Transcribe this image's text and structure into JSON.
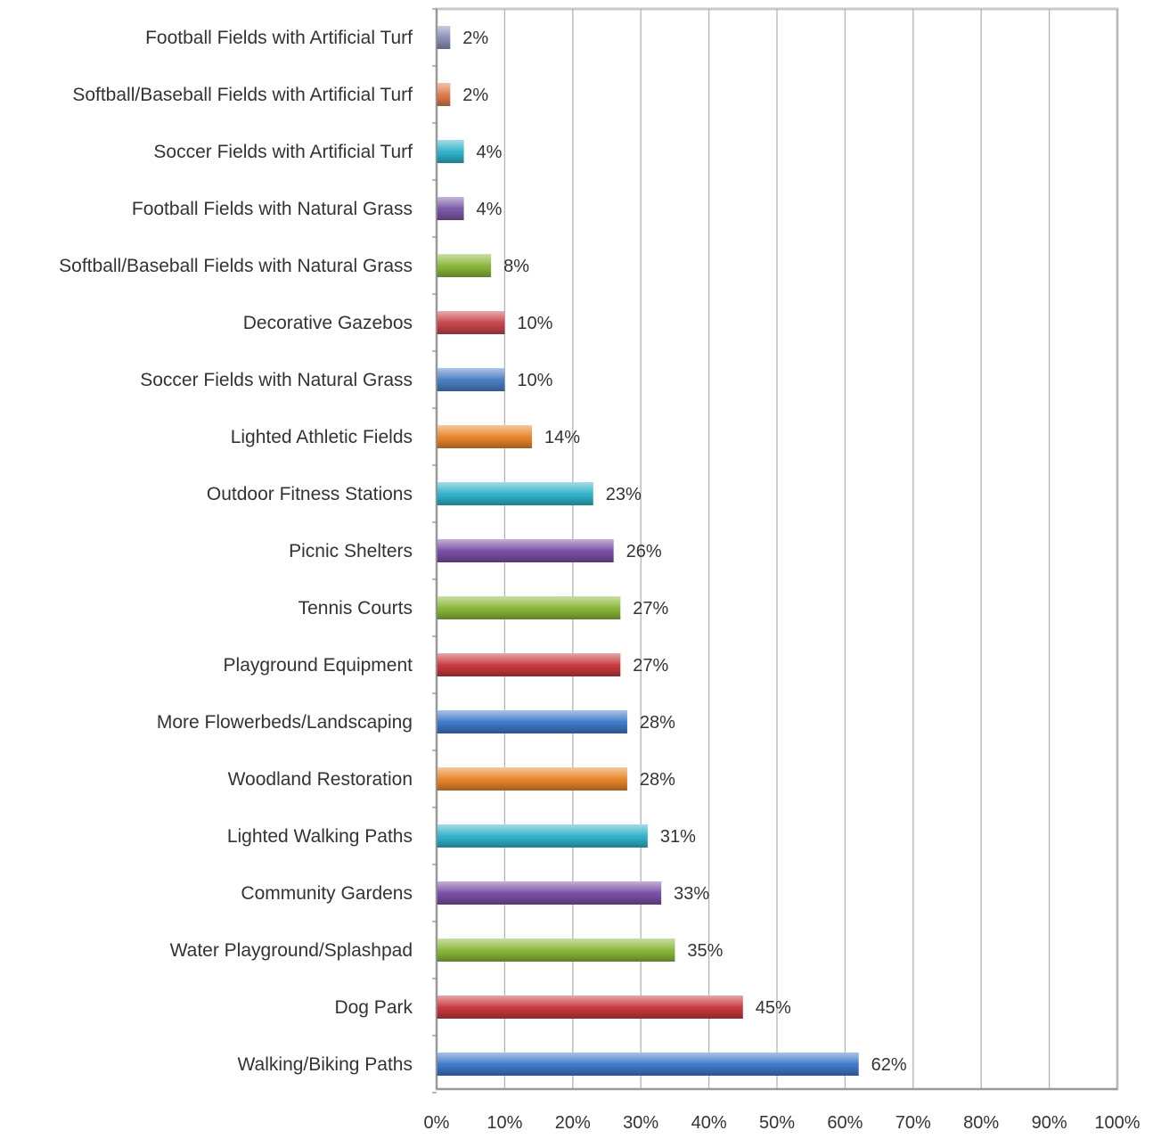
{
  "chart_data": {
    "type": "bar",
    "orientation": "horizontal",
    "categories": [
      "Football Fields with Artificial Turf",
      "Softball/Baseball Fields with Artificial Turf",
      "Soccer Fields with Artificial Turf",
      "Football Fields with Natural Grass",
      "Softball/Baseball Fields with Natural Grass",
      "Decorative Gazebos",
      "Soccer Fields with Natural Grass",
      "Lighted Athletic Fields",
      "Outdoor Fitness Stations",
      "Picnic Shelters",
      "Tennis Courts",
      "Playground Equipment",
      "More Flowerbeds/Landscaping",
      "Woodland Restoration",
      "Lighted Walking Paths",
      "Community Gardens",
      "Water Playground/Splashpad",
      "Dog Park",
      "Walking/Biking Paths"
    ],
    "values": [
      2,
      2,
      4,
      4,
      8,
      10,
      10,
      14,
      23,
      26,
      27,
      27,
      28,
      28,
      31,
      33,
      35,
      45,
      62
    ],
    "value_labels": [
      "2%",
      "2%",
      "4%",
      "4%",
      "8%",
      "10%",
      "10%",
      "14%",
      "23%",
      "26%",
      "27%",
      "27%",
      "28%",
      "28%",
      "31%",
      "33%",
      "35%",
      "45%",
      "62%"
    ],
    "colors": [
      "#8a8fb8",
      "#e07b4a",
      "#2fb3c9",
      "#7b5aa6",
      "#8ab83a",
      "#c8454b",
      "#4a7fc4",
      "#e8852a",
      "#2fb3c9",
      "#7b4fa8",
      "#8ab83a",
      "#c93a40",
      "#3f7ac8",
      "#e8852a",
      "#2fb3c9",
      "#7b4fa8",
      "#8ab83a",
      "#c93a40",
      "#3f7ac8"
    ],
    "x_ticks": [
      "0%",
      "10%",
      "20%",
      "30%",
      "40%",
      "50%",
      "60%",
      "70%",
      "80%",
      "90%",
      "100%"
    ],
    "xlim": [
      0,
      100
    ],
    "title": "",
    "xlabel": "",
    "ylabel": "",
    "grid": "vertical",
    "legend": "none"
  }
}
